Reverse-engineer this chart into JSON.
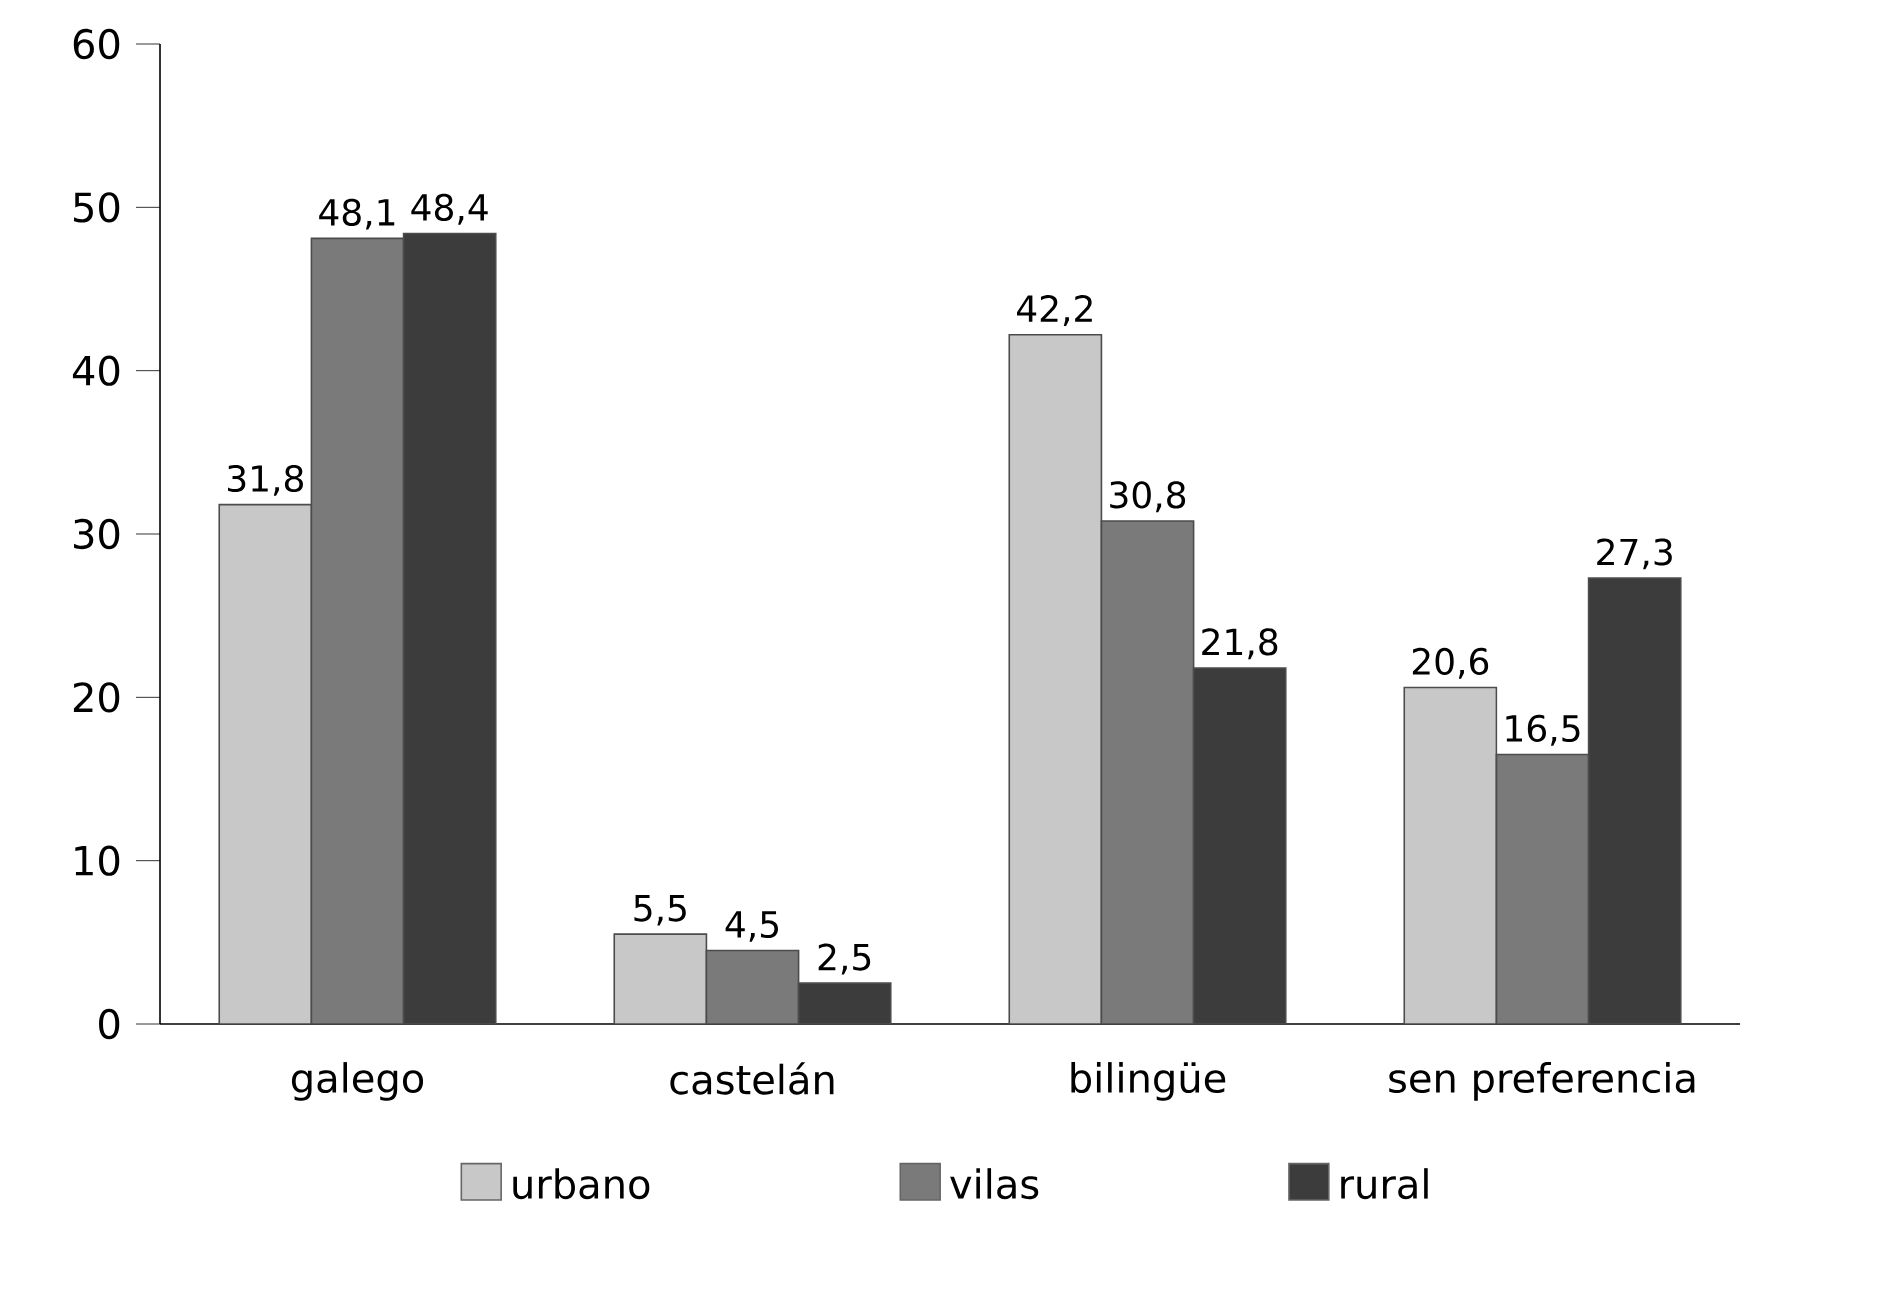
{
  "chart_data": {
    "type": "bar",
    "categories": [
      "galego",
      "castelán",
      "bilingüe",
      "sen preferencia"
    ],
    "series": [
      {
        "name": "urbano",
        "color": "#c8c8c8",
        "values": [
          31.8,
          5.5,
          42.2,
          20.6
        ],
        "value_labels": [
          "31,8",
          "5,5",
          "42,2",
          "20,6"
        ]
      },
      {
        "name": "vilas",
        "color": "#7a7a7a",
        "values": [
          48.1,
          4.5,
          30.8,
          16.5
        ],
        "value_labels": [
          "48,1",
          "4,5",
          "30,8",
          "16,5"
        ]
      },
      {
        "name": "rural",
        "color": "#3c3c3c",
        "values": [
          48.4,
          2.5,
          21.8,
          27.3
        ],
        "value_labels": [
          "48,4",
          "2,5",
          "21,8",
          "27,3"
        ]
      }
    ],
    "ylim": [
      0,
      60
    ],
    "yticks": [
      0,
      10,
      20,
      30,
      40,
      50,
      60
    ],
    "legend": "bottom",
    "grid": false
  }
}
